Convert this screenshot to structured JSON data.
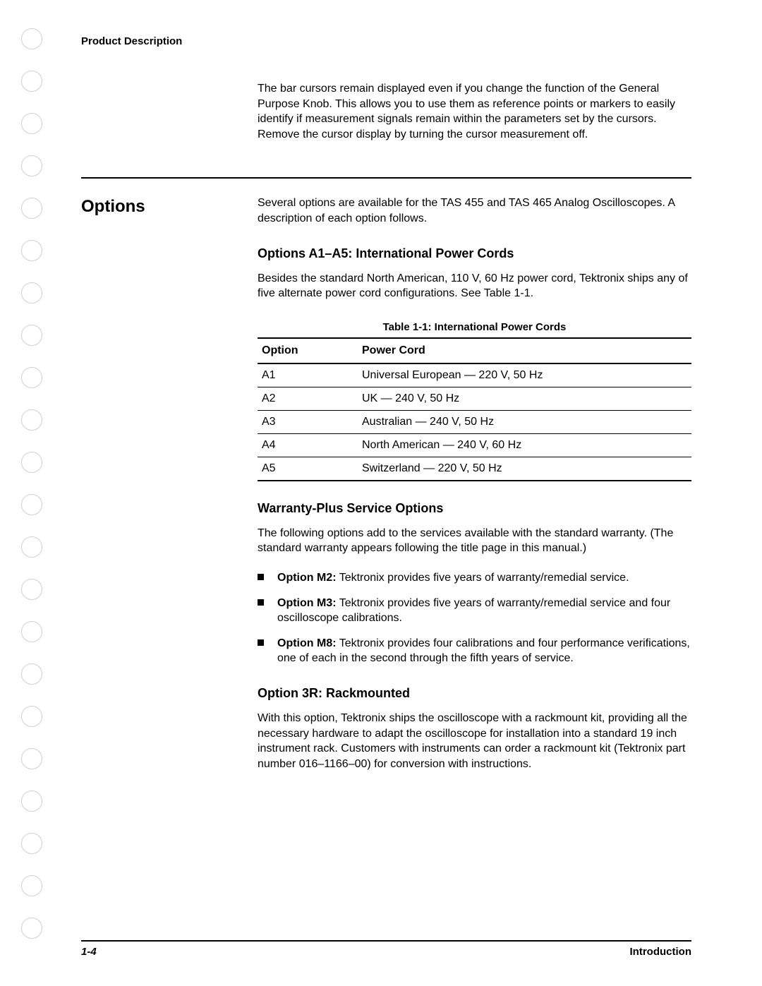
{
  "header": {
    "title": "Product Description"
  },
  "intro_paragraph": "The bar cursors remain displayed even if you change the function of the General Purpose Knob. This allows you to use them as reference points or markers to easily identify if measurement signals remain within the parameters set by the cursors. Remove the cursor display by turning the cursor measurement off.",
  "options": {
    "heading": "Options",
    "intro": "Several options are available for the TAS 455 and TAS 465 Analog Oscilloscopes. A description of each option follows.",
    "a1_a5": {
      "heading": "Options A1–A5: International Power Cords",
      "body": "Besides the standard North American, 110 V, 60 Hz power cord, Tektronix ships any of five alternate power cord configurations. See Table 1-1.",
      "table_caption": "Table 1-1: International Power Cords",
      "columns": [
        "Option",
        "Power Cord"
      ],
      "rows": [
        [
          "A1",
          "Universal European — 220 V, 50 Hz"
        ],
        [
          "A2",
          "UK — 240 V, 50 Hz"
        ],
        [
          "A3",
          "Australian — 240 V, 50 Hz"
        ],
        [
          "A4",
          "North American — 240 V, 60 Hz"
        ],
        [
          "A5",
          "Switzerland — 220 V, 50 Hz"
        ]
      ]
    },
    "warranty": {
      "heading": "Warranty-Plus Service Options",
      "body": "The following options add to the services available with the standard warranty. (The standard warranty appears following the title page in this manual.)",
      "items": [
        {
          "label": "Option M2:",
          "text": " Tektronix provides five years of warranty/remedial service."
        },
        {
          "label": "Option M3:",
          "text": " Tektronix provides five years of warranty/remedial service and four oscilloscope calibrations."
        },
        {
          "label": "Option M8:",
          "text": " Tektronix provides four calibrations and four performance verifications, one of each in the second through the fifth years of service."
        }
      ]
    },
    "rackmount": {
      "heading": "Option 3R: Rackmounted",
      "body": "With this option, Tektronix ships the oscilloscope with a rackmount kit, providing all the necessary hardware to adapt the oscilloscope for installation into a standard 19 inch instrument rack. Customers with instruments can order a rackmount kit (Tektronix part number 016–1166–00) for conversion with instructions."
    }
  },
  "footer": {
    "page": "1-4",
    "section": "Introduction"
  }
}
